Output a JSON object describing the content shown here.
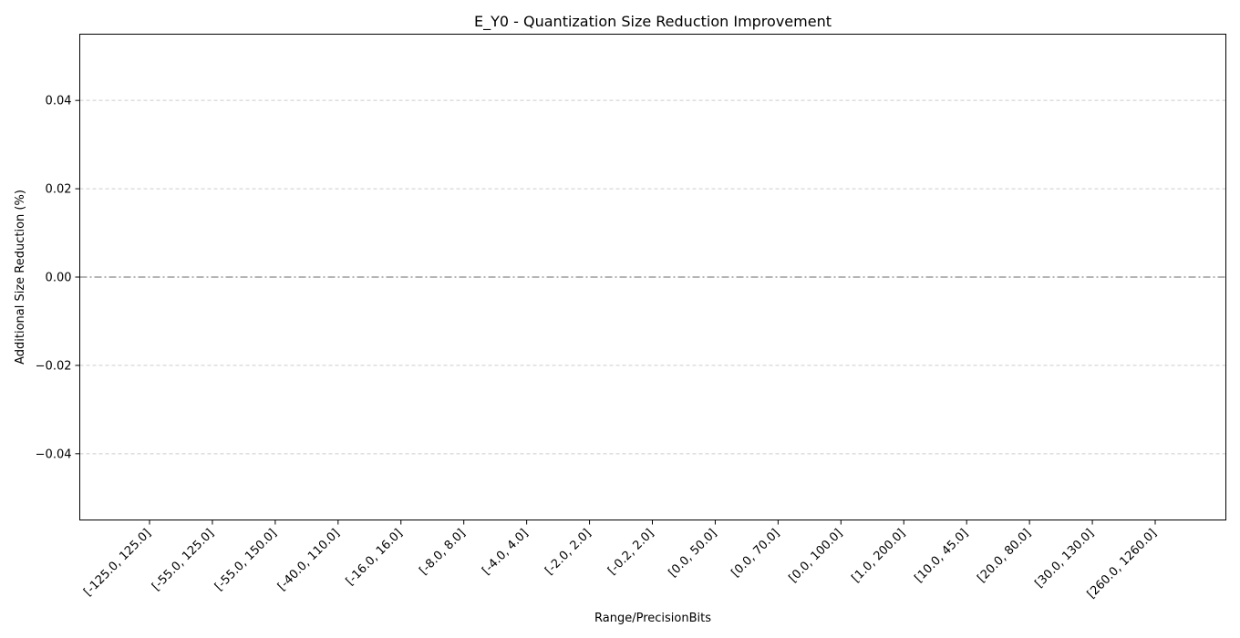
{
  "chart_data": {
    "type": "bar",
    "title": "E_Y0 - Quantization Size Reduction Improvement",
    "xlabel": "Range/PrecisionBits",
    "ylabel": "Additional Size Reduction (%)",
    "categories": [
      "[-125.0, 125.0]",
      "[-55.0, 125.0]",
      "[-55.0, 150.0]",
      "[-40.0, 110.0]",
      "[-16.0, 16.0]",
      "[-8.0, 8.0]",
      "[-4.0, 4.0]",
      "[-2.0, 2.0]",
      "[-0.2, 2.0]",
      "[0.0, 50.0]",
      "[0.0, 70.0]",
      "[0.0, 100.0]",
      "[1.0, 200.0]",
      "[10.0, 45.0]",
      "[20.0, 80.0]",
      "[30.0, 130.0]",
      "[260.0, 1260.0]"
    ],
    "values": [
      0,
      0,
      0,
      0,
      0,
      0,
      0,
      0,
      0,
      0,
      0,
      0,
      0,
      0,
      0,
      0,
      0
    ],
    "ylim": [
      -0.055,
      0.055
    ],
    "yticks": [
      -0.04,
      -0.02,
      0.0,
      0.02,
      0.04
    ],
    "ytick_labels": [
      "−0.04",
      "−0.02",
      "0.00",
      "0.02",
      "0.04"
    ],
    "grid": "horizontal dashed",
    "reference_line": 0,
    "colors": {
      "grid": "#cccccc",
      "reference_line": "#888888",
      "axis": "#000000"
    }
  }
}
